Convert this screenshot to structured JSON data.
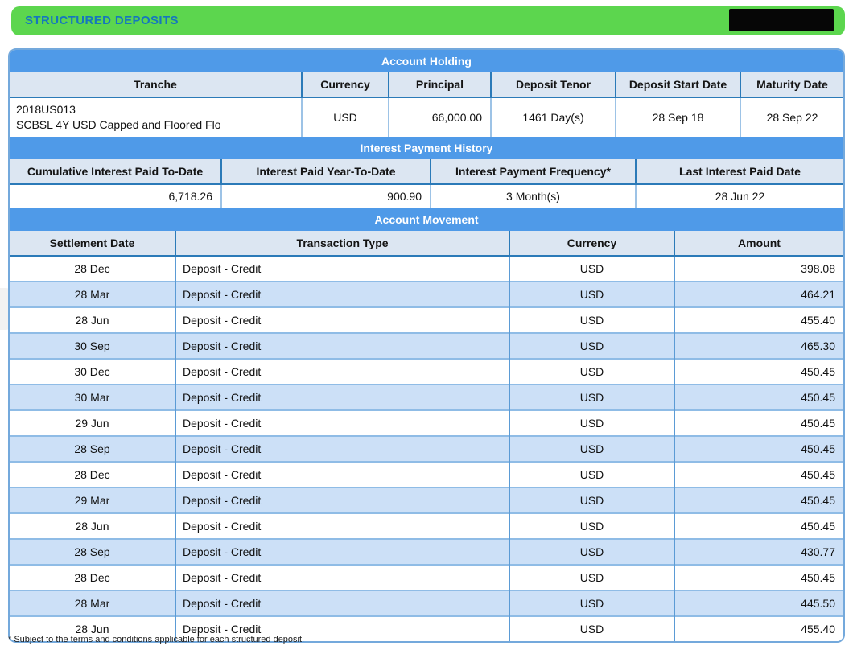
{
  "page": {
    "title": "STRUCTURED DEPOSITS",
    "footnote": "* Subject to the terms and conditions applicable for each structured deposit."
  },
  "colors": {
    "header_green": "#5cd64e",
    "title_blue": "#1577be",
    "section_blue": "#4f9ae8",
    "column_header_bg": "#dce6f2",
    "row_alt_blue": "#cce0f7",
    "panel_border": "#74a9dc"
  },
  "account_holding": {
    "section_title": "Account Holding",
    "columns": [
      "Tranche",
      "Currency",
      "Principal",
      "Deposit Tenor",
      "Deposit Start Date",
      "Maturity Date"
    ],
    "row": {
      "tranche_line1": "2018US013",
      "tranche_line2": "SCBSL 4Y USD Capped and Floored Flo",
      "currency": "USD",
      "principal": "66,000.00",
      "deposit_tenor": "1461 Day(s)",
      "deposit_start_date": "28 Sep 18",
      "maturity_date": "28 Sep 22"
    }
  },
  "interest_payment_history": {
    "section_title": "Interest Payment History",
    "columns": [
      "Cumulative Interest Paid To-Date",
      "Interest Paid Year-To-Date",
      "Interest Payment Frequency*",
      "Last Interest Paid Date"
    ],
    "row": {
      "cumulative_interest_paid_to_date": "6,718.26",
      "interest_paid_year_to_date": "900.90",
      "interest_payment_frequency": "3 Month(s)",
      "last_interest_paid_date": "28 Jun 22"
    }
  },
  "account_movement": {
    "section_title": "Account Movement",
    "columns": [
      "Settlement Date",
      "Transaction Type",
      "Currency",
      "Amount"
    ],
    "rows": [
      {
        "settlement_date": "28 Dec",
        "transaction_type": "Deposit - Credit",
        "currency": "USD",
        "amount": "398.08"
      },
      {
        "settlement_date": "28 Mar",
        "transaction_type": "Deposit - Credit",
        "currency": "USD",
        "amount": "464.21"
      },
      {
        "settlement_date": "28 Jun",
        "transaction_type": "Deposit - Credit",
        "currency": "USD",
        "amount": "455.40"
      },
      {
        "settlement_date": "30 Sep",
        "transaction_type": "Deposit - Credit",
        "currency": "USD",
        "amount": "465.30"
      },
      {
        "settlement_date": "30 Dec",
        "transaction_type": "Deposit - Credit",
        "currency": "USD",
        "amount": "450.45"
      },
      {
        "settlement_date": "30 Mar",
        "transaction_type": "Deposit - Credit",
        "currency": "USD",
        "amount": "450.45"
      },
      {
        "settlement_date": "29 Jun",
        "transaction_type": "Deposit - Credit",
        "currency": "USD",
        "amount": "450.45"
      },
      {
        "settlement_date": "28 Sep",
        "transaction_type": "Deposit - Credit",
        "currency": "USD",
        "amount": "450.45"
      },
      {
        "settlement_date": "28 Dec",
        "transaction_type": "Deposit - Credit",
        "currency": "USD",
        "amount": "450.45"
      },
      {
        "settlement_date": "29 Mar",
        "transaction_type": "Deposit - Credit",
        "currency": "USD",
        "amount": "450.45"
      },
      {
        "settlement_date": "28 Jun",
        "transaction_type": "Deposit - Credit",
        "currency": "USD",
        "amount": "450.45"
      },
      {
        "settlement_date": "28 Sep",
        "transaction_type": "Deposit - Credit",
        "currency": "USD",
        "amount": "430.77"
      },
      {
        "settlement_date": "28 Dec",
        "transaction_type": "Deposit - Credit",
        "currency": "USD",
        "amount": "450.45"
      },
      {
        "settlement_date": "28 Mar",
        "transaction_type": "Deposit - Credit",
        "currency": "USD",
        "amount": "445.50"
      },
      {
        "settlement_date": "28 Jun",
        "transaction_type": "Deposit - Credit",
        "currency": "USD",
        "amount": "455.40"
      }
    ]
  }
}
